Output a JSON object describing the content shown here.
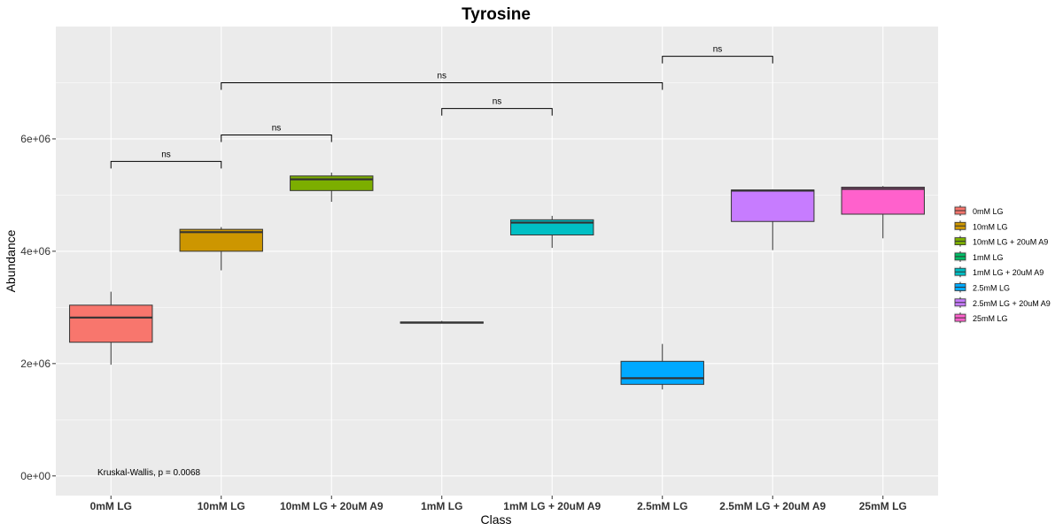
{
  "chart_data": {
    "type": "box",
    "title": "Tyrosine",
    "xlabel": "Class",
    "ylabel": "Abundance",
    "ylim": [
      -350000,
      8000000
    ],
    "yticks": [
      {
        "value": 0,
        "label": "0e+00"
      },
      {
        "value": 2000000,
        "label": "2e+06"
      },
      {
        "value": 4000000,
        "label": "4e+06"
      },
      {
        "value": 6000000,
        "label": "6e+06"
      }
    ],
    "categories": [
      "0mM LG",
      "10mM LG",
      "10mM LG + 20uM A9",
      "1mM LG",
      "1mM LG + 20uM A9",
      "2.5mM LG",
      "2.5mM LG + 20uM A9",
      "25mM LG"
    ],
    "boxes": [
      {
        "category": "0mM LG",
        "min": 1980000,
        "q1": 2380000,
        "median": 2820000,
        "q3": 3040000,
        "max": 3280000,
        "color": "#F8766D"
      },
      {
        "category": "10mM LG",
        "min": 3660000,
        "q1": 4000000,
        "median": 4340000,
        "q3": 4390000,
        "max": 4430000,
        "color": "#CD9600"
      },
      {
        "category": "10mM LG + 20uM A9",
        "min": 4880000,
        "q1": 5080000,
        "median": 5280000,
        "q3": 5340000,
        "max": 5400000,
        "color": "#7CAE00"
      },
      {
        "category": "1mM LG",
        "min": 2720000,
        "q1": 2720000,
        "median": 2730000,
        "q3": 2740000,
        "max": 2760000,
        "color": "#00BE67"
      },
      {
        "category": "1mM LG + 20uM A9",
        "min": 4060000,
        "q1": 4290000,
        "median": 4510000,
        "q3": 4560000,
        "max": 4630000,
        "color": "#00BFC4"
      },
      {
        "category": "2.5mM LG",
        "min": 1540000,
        "q1": 1630000,
        "median": 1740000,
        "q3": 2040000,
        "max": 2350000,
        "color": "#00A9FF"
      },
      {
        "category": "2.5mM LG + 20uM A9",
        "min": 4020000,
        "q1": 4530000,
        "median": 5080000,
        "q3": 5090000,
        "max": 5100000,
        "color": "#C77CFF"
      },
      {
        "category": "25mM LG",
        "min": 4230000,
        "q1": 4660000,
        "median": 5110000,
        "q3": 5140000,
        "max": 5160000,
        "color": "#FF61CC"
      }
    ],
    "comparisons": [
      {
        "from": "0mM LG",
        "to": "10mM LG",
        "y": 5600000,
        "label": "ns"
      },
      {
        "from": "10mM LG",
        "to": "10mM LG + 20uM A9",
        "y": 6070000,
        "label": "ns"
      },
      {
        "from": "1mM LG",
        "to": "1mM LG + 20uM A9",
        "y": 6540000,
        "label": "ns"
      },
      {
        "from": "10mM LG",
        "to": "2.5mM LG",
        "y": 7000000,
        "label": "ns"
      },
      {
        "from": "2.5mM LG",
        "to": "2.5mM LG + 20uM A9",
        "y": 7470000,
        "label": "ns"
      }
    ],
    "annotation": "Kruskal-Wallis, p = 0.0068",
    "legend": {
      "position": "right",
      "entries": [
        "0mM LG",
        "10mM LG",
        "10mM LG + 20uM A9",
        "1mM LG",
        "1mM LG + 20uM A9",
        "2.5mM LG",
        "2.5mM LG + 20uM A9",
        "25mM LG"
      ]
    },
    "grid": true,
    "panel_background": "#EBEBEB"
  }
}
